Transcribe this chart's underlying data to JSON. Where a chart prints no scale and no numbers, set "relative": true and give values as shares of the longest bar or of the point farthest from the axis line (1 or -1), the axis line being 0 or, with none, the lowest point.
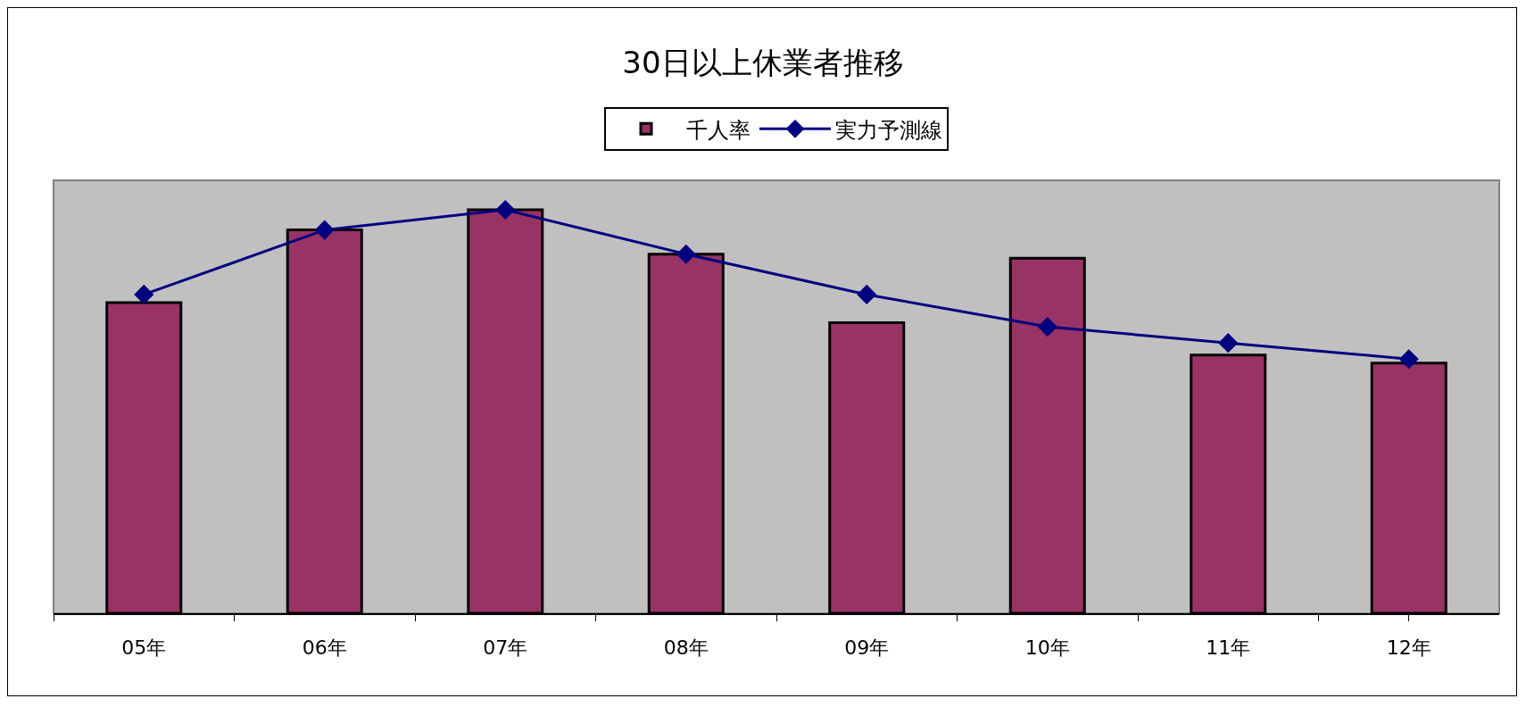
{
  "chart_data": {
    "type": "bar",
    "title": "30日以上休業者推移",
    "categories": [
      "05年",
      "06年",
      "07年",
      "08年",
      "09年",
      "10年",
      "11年",
      "12年"
    ],
    "series": [
      {
        "name": "千人率",
        "color": "#993366",
        "values": [
          0.77,
          0.95,
          1,
          0.89,
          0.72,
          0.88,
          0.64,
          0.62
        ]
      },
      {
        "name": "実力予測線",
        "type": "line",
        "color": "#000080",
        "values": [
          0.79,
          0.95,
          1,
          0.89,
          0.79,
          0.71,
          0.67,
          0.63
        ]
      }
    ],
    "relative": true,
    "legend": "top",
    "marker": "diamond",
    "tick_labels": "x"
  }
}
